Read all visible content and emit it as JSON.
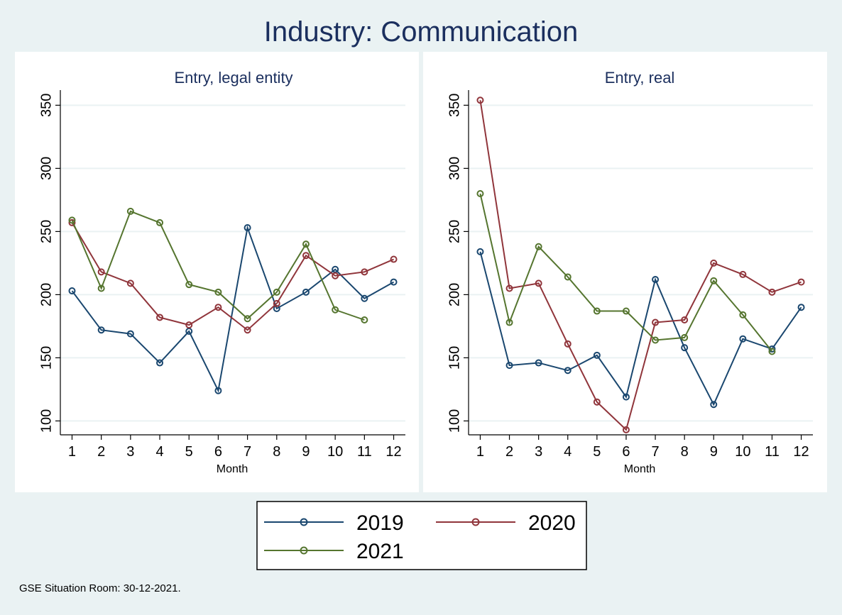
{
  "title": "Industry: Communication",
  "footer": "GSE Situation Room: 30-12-2021.",
  "colors": {
    "background": "#eaf2f3",
    "panel": "#ffffff",
    "grid": "#eaf2f3",
    "title": "#1b2f5e",
    "axis": "#000000",
    "series": {
      "2019": "#1a476f",
      "2020": "#90353b",
      "2021": "#55752f"
    }
  },
  "legend": {
    "items": [
      "2019",
      "2020",
      "2021"
    ],
    "placement": "bottom-center"
  },
  "chart_data": [
    {
      "type": "line",
      "title": "Entry, legal entity",
      "xlabel": "Month",
      "ylabel": "",
      "x": [
        1,
        2,
        3,
        4,
        5,
        6,
        7,
        8,
        9,
        10,
        11,
        12
      ],
      "xlim": [
        0.6,
        12.4
      ],
      "ylim": [
        89,
        362
      ],
      "yticks": [
        100,
        150,
        200,
        250,
        300,
        350
      ],
      "grid": true,
      "series": [
        {
          "name": "2019",
          "values": [
            203,
            172,
            169,
            146,
            171,
            124,
            253,
            189,
            202,
            220,
            197,
            210
          ]
        },
        {
          "name": "2020",
          "values": [
            257,
            218,
            209,
            182,
            176,
            190,
            172,
            193,
            231,
            215,
            218,
            228
          ]
        },
        {
          "name": "2021",
          "values": [
            259,
            205,
            266,
            257,
            208,
            202,
            181,
            202,
            240,
            188,
            180,
            null
          ]
        }
      ]
    },
    {
      "type": "line",
      "title": "Entry, real",
      "xlabel": "Month",
      "ylabel": "",
      "x": [
        1,
        2,
        3,
        4,
        5,
        6,
        7,
        8,
        9,
        10,
        11,
        12
      ],
      "xlim": [
        0.6,
        12.4
      ],
      "ylim": [
        89,
        362
      ],
      "yticks": [
        100,
        150,
        200,
        250,
        300,
        350
      ],
      "grid": true,
      "series": [
        {
          "name": "2019",
          "values": [
            234,
            144,
            146,
            140,
            152,
            119,
            212,
            158,
            113,
            165,
            157,
            190
          ]
        },
        {
          "name": "2020",
          "values": [
            354,
            205,
            209,
            161,
            115,
            93,
            178,
            180,
            225,
            216,
            202,
            210
          ]
        },
        {
          "name": "2021",
          "values": [
            280,
            178,
            238,
            214,
            187,
            187,
            164,
            166,
            211,
            184,
            155,
            null
          ]
        }
      ]
    }
  ]
}
